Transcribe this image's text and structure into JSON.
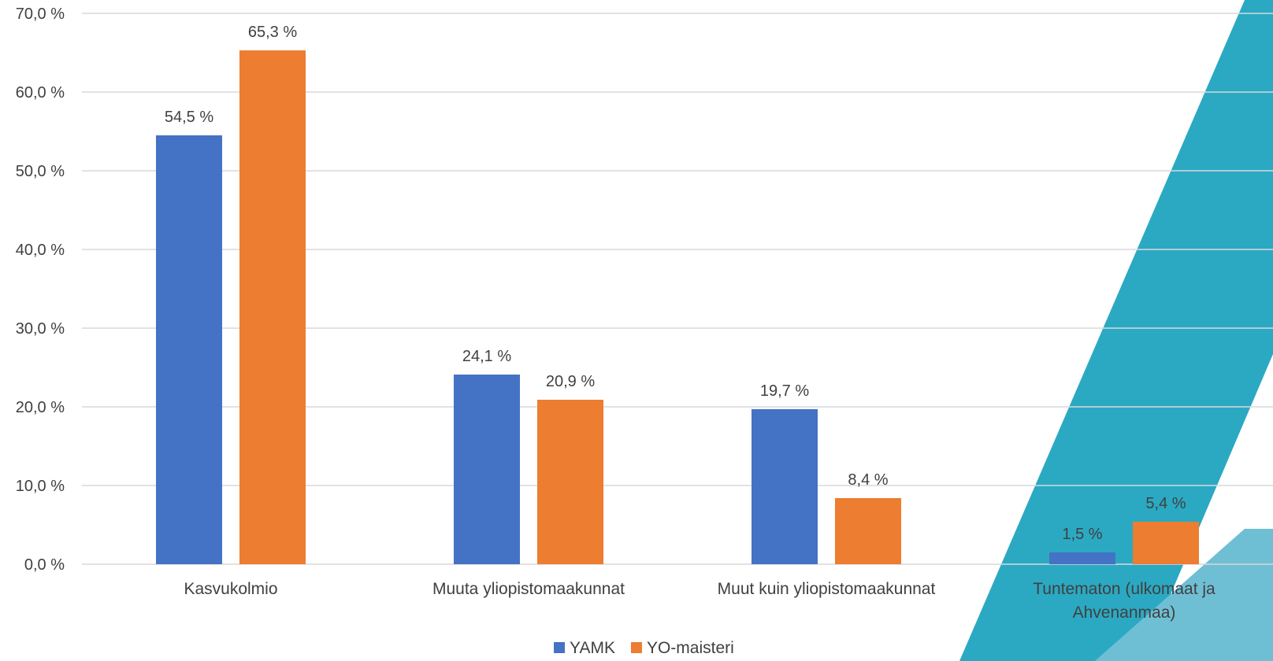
{
  "chart_data": {
    "type": "bar",
    "categories": [
      "Kasvukolmio",
      "Muuta yliopistomaakunnat",
      "Muut kuin yliopistomaakunnat",
      "Tuntematon (ulkomaat ja Ahvenanmaa)"
    ],
    "category_lines": [
      [
        "Kasvukolmio"
      ],
      [
        "Muuta yliopistomaakunnat"
      ],
      [
        "Muut kuin yliopistomaakunnat"
      ],
      [
        "Tuntematon (ulkomaat ja",
        "Ahvenanmaa)"
      ]
    ],
    "series": [
      {
        "name": "YAMK",
        "color": "#4472C4",
        "values": [
          54.5,
          24.1,
          19.7,
          1.5
        ],
        "labels": [
          "54,5 %",
          "24,1 %",
          "19,7 %",
          "1,5 %"
        ]
      },
      {
        "name": "YO-maisteri",
        "color": "#ED7D31",
        "values": [
          65.3,
          20.9,
          8.4,
          5.4
        ],
        "labels": [
          "65,3 %",
          "20,9 %",
          "8,4 %",
          "5,4 %"
        ]
      }
    ],
    "ylim": [
      0,
      70
    ],
    "yticks": [
      0,
      10,
      20,
      30,
      40,
      50,
      60,
      70
    ],
    "ytick_labels": [
      "0,0 %",
      "10,0 %",
      "20,0 %",
      "30,0 %",
      "40,0 %",
      "50,0 %",
      "60,0 %",
      "70,0 %"
    ],
    "grid": true,
    "legend_position": "bottom"
  },
  "colors": {
    "decoration_dark": "#2BA9C2",
    "decoration_light": "#6FBFD4",
    "grid": "#D9D9D9",
    "text": "#404040"
  }
}
